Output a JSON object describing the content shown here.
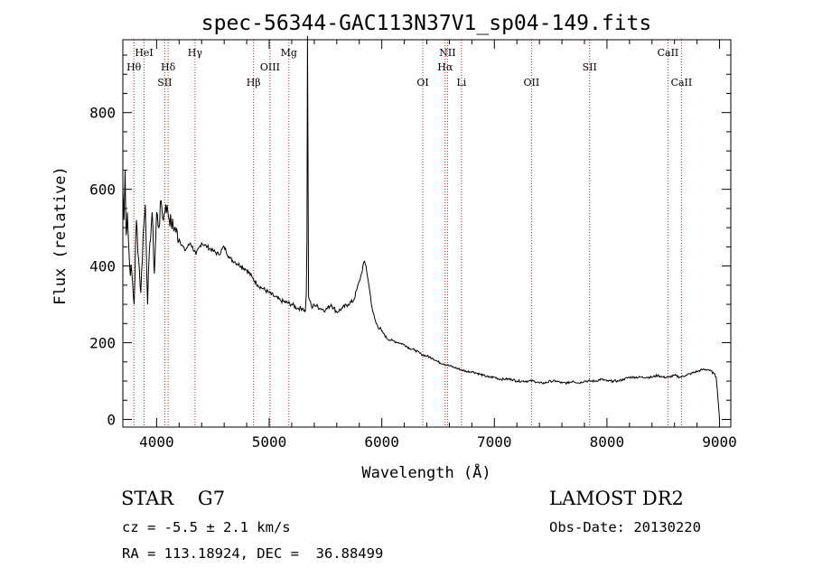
{
  "chart_data": {
    "type": "line",
    "title": "spec-56344-GAC113N37V1_sp04-149.fits",
    "xlabel": "Wavelength (Å)",
    "ylabel": "Flux (relative)",
    "xlim": [
      3700,
      9100
    ],
    "ylim": [
      -20,
      990
    ],
    "x_ticks": [
      4000,
      5000,
      6000,
      7000,
      8000,
      9000
    ],
    "y_ticks": [
      0,
      200,
      400,
      600,
      800
    ],
    "grid": false,
    "series": [
      {
        "color": "#000000",
        "x": [
          3700,
          3710,
          3720,
          3730,
          3740,
          3760,
          3780,
          3800,
          3820,
          3840,
          3860,
          3880,
          3900,
          3920,
          3940,
          3960,
          3980,
          4000,
          4020,
          4040,
          4060,
          4080,
          4100,
          4130,
          4160,
          4200,
          4250,
          4300,
          4350,
          4400,
          4450,
          4500,
          4550,
          4600,
          4650,
          4700,
          4750,
          4800,
          4850,
          4900,
          4950,
          5000,
          5050,
          5100,
          5150,
          5200,
          5250,
          5300,
          5320,
          5330,
          5335,
          5340,
          5350,
          5360,
          5380,
          5400,
          5450,
          5500,
          5550,
          5600,
          5650,
          5700,
          5750,
          5780,
          5800,
          5820,
          5840,
          5860,
          5880,
          5900,
          5920,
          5950,
          6000,
          6050,
          6100,
          6150,
          6200,
          6250,
          6300,
          6350,
          6400,
          6450,
          6500,
          6550,
          6600,
          6650,
          6700,
          6750,
          6800,
          6850,
          6900,
          6950,
          7000,
          7050,
          7100,
          7150,
          7200,
          7250,
          7300,
          7350,
          7400,
          7450,
          7500,
          7550,
          7600,
          7650,
          7700,
          7750,
          7800,
          7850,
          7900,
          7950,
          8000,
          8050,
          8100,
          8150,
          8200,
          8250,
          8300,
          8350,
          8400,
          8450,
          8500,
          8550,
          8600,
          8650,
          8700,
          8750,
          8800,
          8850,
          8900,
          8950,
          8970,
          8980,
          8990,
          9000
        ],
        "values": [
          600,
          520,
          650,
          480,
          540,
          400,
          380,
          300,
          520,
          420,
          330,
          480,
          560,
          300,
          460,
          540,
          380,
          540,
          500,
          570,
          520,
          560,
          540,
          510,
          500,
          470,
          440,
          460,
          430,
          460,
          450,
          440,
          430,
          450,
          420,
          410,
          400,
          390,
          370,
          350,
          340,
          330,
          320,
          310,
          305,
          300,
          290,
          290,
          280,
          330,
          470,
          1000,
          320,
          310,
          290,
          300,
          290,
          285,
          300,
          280,
          290,
          300,
          310,
          340,
          360,
          380,
          410,
          400,
          360,
          320,
          280,
          250,
          230,
          210,
          205,
          200,
          195,
          185,
          180,
          170,
          165,
          160,
          150,
          145,
          140,
          135,
          130,
          125,
          125,
          120,
          115,
          110,
          110,
          105,
          105,
          105,
          100,
          100,
          100,
          100,
          95,
          95,
          100,
          100,
          95,
          95,
          100,
          95,
          100,
          100,
          100,
          105,
          100,
          100,
          100,
          105,
          110,
          110,
          110,
          110,
          110,
          115,
          110,
          110,
          115,
          110,
          115,
          120,
          125,
          130,
          130,
          120,
          110,
          80,
          40,
          0
        ]
      }
    ],
    "lines": [
      {
        "label": "Hθ",
        "x": 3798,
        "row": 2
      },
      {
        "label": "HeI",
        "x": 3889,
        "row": 1
      },
      {
        "label": "Hδ",
        "x": 4102,
        "row": 2
      },
      {
        "label": "SII",
        "x": 4072,
        "row": 3
      },
      {
        "label": "Hγ",
        "x": 4341,
        "row": 1
      },
      {
        "label": "Hβ",
        "x": 4861,
        "row": 3
      },
      {
        "label": "OIII",
        "x": 5007,
        "row": 2
      },
      {
        "label": "Mg",
        "x": 5175,
        "row": 1
      },
      {
        "label": "OI",
        "x": 6364,
        "row": 3
      },
      {
        "label": "NII",
        "x": 6584,
        "row": 1
      },
      {
        "label": "Hα",
        "x": 6563,
        "row": 2
      },
      {
        "label": "Li",
        "x": 6708,
        "row": 3
      },
      {
        "label": "OII",
        "x": 7330,
        "row": 3
      },
      {
        "label": "SII",
        "x": 7846,
        "row": 2
      },
      {
        "label": "CaII",
        "x": 8542,
        "row": 1
      },
      {
        "label": "CaII",
        "x": 8662,
        "row": 3
      }
    ]
  },
  "info": {
    "class": "STAR    G7",
    "survey": "LAMOST DR2",
    "cz": "cz = -5.5 ± 2.1 km/s",
    "obs_date": "Obs-Date: 20130220",
    "coords": "RA = 113.18924, DEC =  36.88499"
  }
}
